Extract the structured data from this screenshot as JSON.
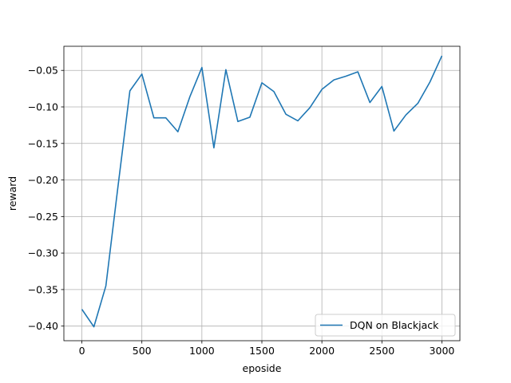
{
  "chart_data": {
    "type": "line",
    "title": "",
    "xlabel": "eposide",
    "ylabel": "reward",
    "xlim": [
      -150,
      3150
    ],
    "ylim": [
      -0.42,
      -0.017
    ],
    "xticks": [
      0,
      500,
      1000,
      1500,
      2000,
      2500,
      3000
    ],
    "xtick_labels": [
      "0",
      "500",
      "1000",
      "1500",
      "2000",
      "2500",
      "3000"
    ],
    "yticks": [
      -0.4,
      -0.35,
      -0.3,
      -0.25,
      -0.2,
      -0.15,
      -0.1,
      -0.05
    ],
    "ytick_labels": [
      "−0.40",
      "−0.35",
      "−0.30",
      "−0.25",
      "−0.20",
      "−0.15",
      "−0.10",
      "−0.05"
    ],
    "grid": true,
    "legend_position": "lower-right",
    "series_color": "#1f77b4",
    "series": [
      {
        "name": "DQN on Blackjack",
        "x": [
          0,
          100,
          200,
          300,
          400,
          500,
          600,
          700,
          800,
          900,
          1000,
          1100,
          1200,
          1300,
          1400,
          1500,
          1600,
          1700,
          1800,
          1900,
          2000,
          2100,
          2200,
          2300,
          2400,
          2500,
          2600,
          2700,
          2800,
          2900,
          3000
        ],
        "values": [
          -0.377,
          -0.401,
          -0.345,
          -0.21,
          -0.078,
          -0.055,
          -0.115,
          -0.115,
          -0.134,
          -0.086,
          -0.046,
          -0.156,
          -0.049,
          -0.12,
          -0.114,
          -0.067,
          -0.079,
          -0.11,
          -0.119,
          -0.101,
          -0.076,
          -0.063,
          -0.058,
          -0.052,
          -0.094,
          -0.072,
          -0.133,
          -0.111,
          -0.095,
          -0.066,
          -0.03
        ]
      }
    ]
  }
}
